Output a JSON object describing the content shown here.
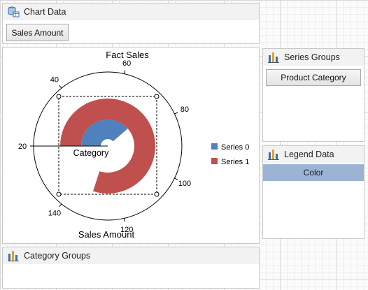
{
  "chart_data_panel": {
    "title": "Chart Data",
    "field_label": "Sales Amount"
  },
  "chart": {
    "title": "Fact Sales",
    "category_label": "Category",
    "axis_label": "Sales Amount",
    "ticks": [
      "20",
      "40",
      "60",
      "80",
      "100",
      "120",
      "140"
    ]
  },
  "chart_data": {
    "type": "pie",
    "subtype": "radial-bar",
    "title": "Fact Sales",
    "xlabel": "Category",
    "ylabel": "Sales Amount",
    "radial_axis_ticks": [
      20,
      40,
      60,
      80,
      100,
      120,
      140
    ],
    "series": [
      {
        "name": "Series 0",
        "color": "#4f81bd",
        "value": 74
      },
      {
        "name": "Series 1",
        "color": "#c0504d",
        "value": 132
      }
    ],
    "legend_position": "right"
  },
  "legend": {
    "items": [
      {
        "label": "Series 0",
        "color": "#4f81bd"
      },
      {
        "label": "Series 1",
        "color": "#c0504d"
      }
    ]
  },
  "series_groups": {
    "title": "Series Groups",
    "item": "Product Category"
  },
  "legend_data": {
    "title": "Legend Data",
    "item": "Color"
  },
  "category_groups": {
    "title": "Category Groups"
  }
}
